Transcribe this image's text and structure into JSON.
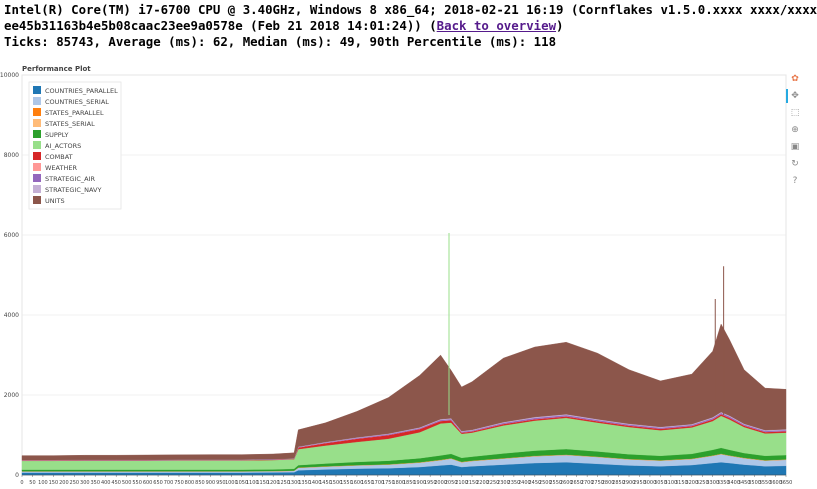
{
  "header": {
    "line1": "Intel(R) Core(TM) i7-6700 CPU @ 3.40GHz, Windows 8 x86_64; 2018-02-21 16:19 (Cornflakes v1.5.0.xxxx xxxx/xxxx",
    "line2_prefix": "ee45b31163b4e5b08caac23ee9a0578e (Feb 21 2018 14:01:24)) (",
    "link": "Back to overview",
    "line2_suffix": ")",
    "line3": "Ticks: 85743, Average (ms): 62, Median (ms): 49, 90th Percentile (ms): 118"
  },
  "toolbar": [
    "bokeh-logo-icon",
    "pan-icon",
    "box-zoom-icon",
    "wheel-zoom-icon",
    "save-icon",
    "reset-icon",
    "help-icon"
  ],
  "chart_data": {
    "type": "area",
    "title": "Performance Plot",
    "xlim": [
      0,
      3650
    ],
    "ylim": [
      0,
      10000
    ],
    "y_ticks": [
      0,
      2000,
      4000,
      6000,
      8000,
      10000
    ],
    "x_tick_step": 50,
    "grid": true,
    "stacked": true,
    "legend_position": "top-left",
    "x": [
      0,
      150,
      300,
      450,
      600,
      750,
      900,
      1050,
      1200,
      1300,
      1320,
      1450,
      1600,
      1750,
      1900,
      2000,
      2050,
      2100,
      2150,
      2300,
      2450,
      2600,
      2750,
      2900,
      3050,
      3200,
      3300,
      3340,
      3380,
      3450,
      3550,
      3650
    ],
    "series": [
      {
        "name": "COUNTRIES_PARALLEL",
        "color": "#1f77b4",
        "values": [
          60,
          60,
          60,
          60,
          60,
          60,
          60,
          60,
          65,
          70,
          120,
          140,
          160,
          170,
          200,
          240,
          260,
          200,
          220,
          260,
          300,
          320,
          280,
          240,
          220,
          250,
          300,
          320,
          300,
          260,
          220,
          230
        ]
      },
      {
        "name": "COUNTRIES_SERIAL",
        "color": "#aec7e8",
        "values": [
          30,
          30,
          30,
          30,
          30,
          30,
          30,
          30,
          30,
          35,
          60,
          70,
          80,
          90,
          110,
          130,
          150,
          120,
          130,
          150,
          170,
          180,
          170,
          150,
          140,
          150,
          180,
          200,
          180,
          160,
          140,
          150
        ]
      },
      {
        "name": "STATES_PARALLEL",
        "color": "#ff7f0e",
        "values": [
          3,
          3,
          3,
          3,
          3,
          3,
          3,
          3,
          3,
          3,
          4,
          4,
          4,
          4,
          5,
          5,
          5,
          5,
          5,
          5,
          5,
          5,
          5,
          5,
          5,
          5,
          5,
          5,
          5,
          5,
          5,
          5
        ]
      },
      {
        "name": "STATES_SERIAL",
        "color": "#ffbb78",
        "values": [
          3,
          3,
          3,
          3,
          3,
          3,
          3,
          3,
          3,
          3,
          4,
          4,
          4,
          4,
          5,
          5,
          5,
          5,
          5,
          5,
          5,
          5,
          5,
          5,
          5,
          5,
          5,
          5,
          5,
          5,
          5,
          5
        ]
      },
      {
        "name": "SUPPLY",
        "color": "#2ca02c",
        "values": [
          40,
          40,
          40,
          40,
          40,
          40,
          40,
          40,
          40,
          45,
          60,
          70,
          80,
          90,
          100,
          110,
          110,
          100,
          100,
          120,
          130,
          140,
          130,
          120,
          110,
          120,
          140,
          150,
          140,
          120,
          110,
          110
        ]
      },
      {
        "name": "AI_ACTORS",
        "color": "#98df8a",
        "values": [
          220,
          220,
          225,
          225,
          225,
          230,
          230,
          230,
          235,
          240,
          400,
          450,
          500,
          550,
          650,
          800,
          780,
          600,
          600,
          700,
          750,
          780,
          720,
          680,
          640,
          660,
          720,
          800,
          760,
          650,
          560,
          560
        ]
      },
      {
        "name": "COMBAT",
        "color": "#d62728",
        "values": [
          8,
          8,
          8,
          8,
          8,
          8,
          8,
          8,
          8,
          8,
          40,
          60,
          80,
          90,
          80,
          60,
          60,
          30,
          30,
          35,
          35,
          35,
          35,
          35,
          35,
          35,
          40,
          40,
          40,
          35,
          35,
          35
        ]
      },
      {
        "name": "WEATHER",
        "color": "#ff9896",
        "values": [
          2,
          2,
          2,
          2,
          2,
          2,
          2,
          2,
          2,
          2,
          3,
          3,
          3,
          3,
          3,
          3,
          3,
          3,
          3,
          3,
          3,
          3,
          3,
          3,
          3,
          3,
          3,
          3,
          3,
          3,
          3,
          3
        ]
      },
      {
        "name": "STRATEGIC_AIR",
        "color": "#9467bd",
        "values": [
          5,
          5,
          5,
          5,
          5,
          5,
          5,
          5,
          5,
          5,
          10,
          12,
          15,
          18,
          20,
          25,
          25,
          20,
          20,
          25,
          30,
          30,
          28,
          25,
          25,
          25,
          30,
          30,
          30,
          25,
          25,
          25
        ]
      },
      {
        "name": "STRATEGIC_NAVY",
        "color": "#c5b0d5",
        "values": [
          5,
          5,
          5,
          5,
          5,
          5,
          5,
          5,
          5,
          5,
          10,
          12,
          14,
          16,
          18,
          20,
          20,
          18,
          18,
          20,
          22,
          22,
          20,
          20,
          20,
          20,
          22,
          22,
          22,
          20,
          20,
          20
        ]
      },
      {
        "name": "UNITS",
        "color": "#8c564b",
        "values": [
          110,
          110,
          115,
          115,
          120,
          120,
          125,
          125,
          130,
          140,
          420,
          480,
          650,
          900,
          1300,
          1600,
          1200,
          1100,
          1200,
          1600,
          1750,
          1800,
          1650,
          1350,
          1150,
          1250,
          1650,
          2200,
          1900,
          1350,
          1050,
          1000
        ]
      }
    ],
    "annotations": [
      {
        "x": 2040,
        "y": 6050,
        "series": "AI_ACTORS"
      },
      {
        "x": 3352,
        "y": 5220,
        "series": "UNITS"
      },
      {
        "x": 3312,
        "y": 4400,
        "series": "UNITS"
      }
    ]
  }
}
